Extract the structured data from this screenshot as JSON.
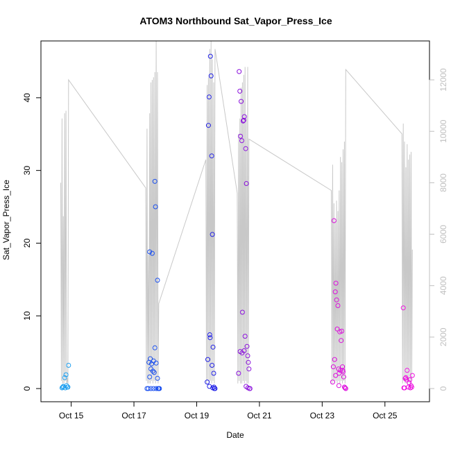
{
  "chart_data": {
    "type": "scatter",
    "title": "ATOM3 Northbound Sat_Vapor_Press_Ice",
    "xlabel": "Date",
    "ylabel": "Sat_Vapor_Press_Ice",
    "x_ticks": [
      "Oct 15",
      "Oct 17",
      "Oct 19",
      "Oct 21",
      "Oct 23",
      "Oct 25"
    ],
    "xlim": [
      "2017-10-14T12:00",
      "2017-10-26T00:00"
    ],
    "ylim": [
      0,
      46
    ],
    "y_ticks": [
      0,
      10,
      20,
      30,
      40
    ],
    "y2_ticks": [
      0,
      2000,
      4000,
      6000,
      8000,
      10000,
      12000
    ],
    "y2lim": [
      0,
      13000
    ],
    "grid": false,
    "colors": {
      "flight1": "#1e9fef",
      "flight2": "#1a4fef",
      "flight3": "#2020e6",
      "flight4": "#8a10dc",
      "flight5": "#dd10dd",
      "flight6": "#ee10e0",
      "altitude": "#c8c8c8",
      "right_axis": "#bfbfbf"
    },
    "series": [
      {
        "color_key": "flight1",
        "x": [
          "2017-10-14T17:00",
          "2017-10-14T18:00",
          "2017-10-14T19:00",
          "2017-10-14T20:00",
          "2017-10-14T21:00",
          "2017-10-14T22:00",
          "2017-10-14T17:30",
          "2017-10-14T19:30",
          "2017-10-14T20:30",
          "2017-10-14T21:30"
        ],
        "y": [
          0.1,
          0.3,
          1.5,
          1.9,
          0.2,
          3.2,
          0.2,
          0.1,
          0.4,
          0.2
        ]
      },
      {
        "color_key": "flight2",
        "x": [
          "2017-10-17T10:00",
          "2017-10-17T11:00",
          "2017-10-17T12:00",
          "2017-10-17T13:00",
          "2017-10-17T14:00",
          "2017-10-17T15:00",
          "2017-10-17T16:00",
          "2017-10-17T17:00",
          "2017-10-17T18:00",
          "2017-10-17T19:00",
          "2017-10-17T11:30",
          "2017-10-17T12:30",
          "2017-10-17T13:30",
          "2017-10-17T14:30",
          "2017-10-17T15:30",
          "2017-10-17T16:30",
          "2017-10-17T12:00",
          "2017-10-17T15:00",
          "2017-10-17T17:00",
          "2017-10-17T18:00",
          "2017-10-17T13:00",
          "2017-10-17T16:00",
          "2017-10-17T18:30",
          "2017-10-17T19:30"
        ],
        "y": [
          0.0,
          0.0,
          18.8,
          0.0,
          18.6,
          0.0,
          28.5,
          0.0,
          14.9,
          0.0,
          3.6,
          4.1,
          3.4,
          2.4,
          2.2,
          25.0,
          1.6,
          3.8,
          3.5,
          1.4,
          2.7,
          5.6,
          0.0,
          0.0
        ]
      },
      {
        "color_key": "flight3",
        "x": [
          "2017-10-19T08:00",
          "2017-10-19T09:00",
          "2017-10-19T09:30",
          "2017-10-19T10:00",
          "2017-10-19T10:30",
          "2017-10-19T11:00",
          "2017-10-19T11:30",
          "2017-10-19T12:00",
          "2017-10-19T12:30",
          "2017-10-19T13:00",
          "2017-10-19T13:30",
          "2017-10-19T14:00",
          "2017-10-19T08:30",
          "2017-10-19T10:15",
          "2017-10-19T11:45",
          "2017-10-19T13:15",
          "2017-10-19T09:45",
          "2017-10-19T12:15"
        ],
        "y": [
          0.9,
          36.2,
          40.1,
          7.4,
          45.7,
          43.0,
          32.0,
          21.2,
          5.7,
          2.1,
          0.0,
          0.0,
          4.0,
          7.0,
          3.2,
          0.2,
          0.3,
          0.1
        ]
      },
      {
        "color_key": "flight4",
        "x": [
          "2017-10-20T08:00",
          "2017-10-20T08:30",
          "2017-10-20T09:00",
          "2017-10-20T09:30",
          "2017-10-20T10:00",
          "2017-10-20T10:30",
          "2017-10-20T11:00",
          "2017-10-20T11:30",
          "2017-10-20T12:00",
          "2017-10-20T12:30",
          "2017-10-20T13:00",
          "2017-10-20T13:30",
          "2017-10-20T14:00",
          "2017-10-20T14:30",
          "2017-10-20T15:00",
          "2017-10-20T15:30",
          "2017-10-20T16:00",
          "2017-10-20T16:30",
          "2017-10-20T09:15",
          "2017-10-20T10:45",
          "2017-10-20T12:15",
          "2017-10-20T13:45",
          "2017-10-20T15:15",
          "2017-10-20T16:45"
        ],
        "y": [
          2.1,
          43.6,
          40.9,
          34.7,
          39.5,
          34.1,
          10.5,
          36.8,
          36.9,
          37.4,
          7.2,
          33.0,
          28.2,
          5.8,
          4.5,
          3.6,
          2.7,
          0.0,
          5.1,
          4.9,
          5.2,
          0.3,
          0.1,
          0.0
        ]
      },
      {
        "color_key": "flight5",
        "x": [
          "2017-10-23T08:00",
          "2017-10-23T09:00",
          "2017-10-23T09:30",
          "2017-10-23T10:00",
          "2017-10-23T10:30",
          "2017-10-23T11:00",
          "2017-10-23T11:30",
          "2017-10-23T12:00",
          "2017-10-23T12:30",
          "2017-10-23T13:00",
          "2017-10-23T13:30",
          "2017-10-23T14:00",
          "2017-10-23T14:30",
          "2017-10-23T15:00",
          "2017-10-23T15:30",
          "2017-10-23T16:00",
          "2017-10-23T16:30",
          "2017-10-23T17:00",
          "2017-10-23T17:30",
          "2017-10-23T18:00",
          "2017-10-23T08:30",
          "2017-10-23T10:15",
          "2017-10-23T12:45",
          "2017-10-23T15:45"
        ],
        "y": [
          0.9,
          23.1,
          4.0,
          13.3,
          14.5,
          12.2,
          8.2,
          11.4,
          2.7,
          2.1,
          7.8,
          2.5,
          6.6,
          7.9,
          3.0,
          2.3,
          1.6,
          0.2,
          0.1,
          0.0,
          3.0,
          1.8,
          0.4,
          2.5
        ]
      },
      {
        "color_key": "flight6",
        "x": [
          "2017-10-25T14:00",
          "2017-10-25T15:00",
          "2017-10-25T16:00",
          "2017-10-25T17:00",
          "2017-10-25T18:00",
          "2017-10-25T19:00",
          "2017-10-25T20:00",
          "2017-10-25T21:00",
          "2017-10-25T14:30",
          "2017-10-25T16:30",
          "2017-10-25T18:30",
          "2017-10-25T20:30",
          "2017-10-25T15:30",
          "2017-10-25T19:30"
        ],
        "y": [
          11.1,
          0.1,
          1.5,
          2.5,
          0.2,
          1.2,
          0.4,
          1.8,
          0.1,
          1.2,
          0.8,
          0.2,
          1.4,
          0.1
        ]
      }
    ],
    "altitude_series": {
      "axis": "right",
      "x": [
        "2017-10-14T16:00",
        "2017-10-14T16:30",
        "2017-10-14T17:00",
        "2017-10-14T17:30",
        "2017-10-14T18:00",
        "2017-10-14T18:30",
        "2017-10-14T19:00",
        "2017-10-14T19:30",
        "2017-10-14T20:00",
        "2017-10-14T20:30",
        "2017-10-14T21:00",
        "2017-10-14T21:30",
        "2017-10-14T22:00",
        "2017-10-17T09:00",
        "2017-10-17T09:30",
        "2017-10-17T10:00",
        "2017-10-17T10:30",
        "2017-10-17T11:00",
        "2017-10-17T11:30",
        "2017-10-17T12:00",
        "2017-10-17T12:30",
        "2017-10-17T13:00",
        "2017-10-17T13:30",
        "2017-10-17T14:00",
        "2017-10-17T14:30",
        "2017-10-17T15:00",
        "2017-10-17T15:30",
        "2017-10-17T16:00",
        "2017-10-17T16:30",
        "2017-10-17T17:00",
        "2017-10-17T17:30",
        "2017-10-17T18:00",
        "2017-10-17T18:30",
        "2017-10-17T19:00",
        "2017-10-19T07:00",
        "2017-10-19T07:30",
        "2017-10-19T08:00",
        "2017-10-19T08:30",
        "2017-10-19T09:00",
        "2017-10-19T09:30",
        "2017-10-19T10:00",
        "2017-10-19T10:30",
        "2017-10-19T11:00",
        "2017-10-19T11:30",
        "2017-10-19T12:00",
        "2017-10-19T12:30",
        "2017-10-19T13:00",
        "2017-10-19T13:30",
        "2017-10-19T14:00",
        "2017-10-20T07:00",
        "2017-10-20T07:30",
        "2017-10-20T08:00",
        "2017-10-20T08:30",
        "2017-10-20T09:00",
        "2017-10-20T09:30",
        "2017-10-20T10:00",
        "2017-10-20T10:30",
        "2017-10-20T11:00",
        "2017-10-20T11:30",
        "2017-10-20T12:00",
        "2017-10-20T12:30",
        "2017-10-20T13:00",
        "2017-10-20T13:30",
        "2017-10-20T14:00",
        "2017-10-20T14:30",
        "2017-10-20T15:00",
        "2017-10-20T15:30",
        "2017-10-20T16:00",
        "2017-10-23T07:00",
        "2017-10-23T07:30",
        "2017-10-23T08:00",
        "2017-10-23T08:30",
        "2017-10-23T09:00",
        "2017-10-23T09:30",
        "2017-10-23T10:00",
        "2017-10-23T10:30",
        "2017-10-23T11:00",
        "2017-10-23T11:30",
        "2017-10-23T12:00",
        "2017-10-23T12:30",
        "2017-10-23T13:00",
        "2017-10-23T13:30",
        "2017-10-23T14:00",
        "2017-10-23T14:30",
        "2017-10-23T15:00",
        "2017-10-23T15:30",
        "2017-10-23T16:00",
        "2017-10-23T16:30",
        "2017-10-23T17:00",
        "2017-10-23T17:30",
        "2017-10-23T18:00",
        "2017-10-25T13:00",
        "2017-10-25T13:30",
        "2017-10-25T14:00",
        "2017-10-25T14:30",
        "2017-10-25T15:00",
        "2017-10-25T15:30",
        "2017-10-25T16:00",
        "2017-10-25T16:30",
        "2017-10-25T17:00",
        "2017-10-25T17:30",
        "2017-10-25T18:00",
        "2017-10-25T18:30",
        "2017-10-25T19:00",
        "2017-10-25T19:30",
        "2017-10-25T20:00",
        "2017-10-25T20:30",
        "2017-10-25T21:00"
      ],
      "y": [
        8000,
        300,
        10500,
        200,
        6700,
        200,
        10700,
        300,
        10800,
        200,
        400,
        200,
        12000,
        7800,
        300,
        10100,
        200,
        5200,
        200,
        10700,
        200,
        11900,
        300,
        12000,
        200,
        12100,
        300,
        12300,
        200,
        13500,
        300,
        12300,
        200,
        3300,
        8900,
        200,
        11800,
        300,
        12100,
        200,
        13200,
        300,
        13500,
        200,
        12800,
        300,
        11900,
        200,
        13200,
        7600,
        200,
        9900,
        300,
        10500,
        200,
        11700,
        200,
        11900,
        300,
        12200,
        200,
        12500,
        300,
        10500,
        200,
        12500,
        200,
        9700,
        7700,
        200,
        8700,
        300,
        7200,
        200,
        6500,
        300,
        7300,
        200,
        6900,
        300,
        7700,
        200,
        9000,
        300,
        8800,
        200,
        9300,
        300,
        9600,
        200,
        12400,
        9900,
        200,
        10300,
        300,
        9600,
        200,
        8600,
        300,
        9500,
        200,
        8900,
        300,
        9100,
        200,
        9200,
        300,
        5400
      ]
    }
  }
}
